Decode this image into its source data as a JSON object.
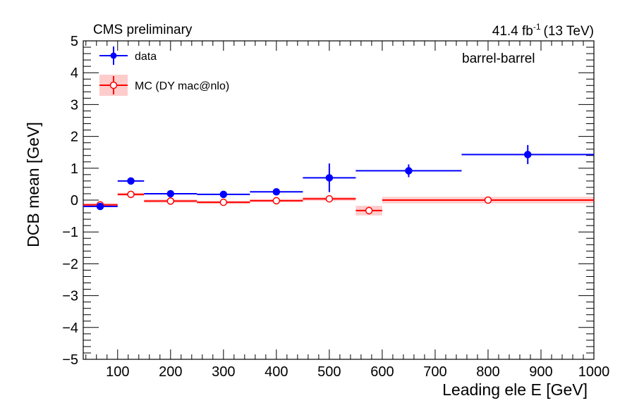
{
  "header": {
    "left": "CMS preliminary",
    "lumi_value": "41.4 fb",
    "lumi_exp": "-1",
    "lumi_energy": "(13 TeV)"
  },
  "category_label": "barrel-barrel",
  "chart_data": {
    "type": "scatter",
    "xlabel": "Leading ele E [GeV]",
    "ylabel": "DCB mean [GeV]",
    "xlim": [
      35,
      1000
    ],
    "ylim": [
      -5,
      5
    ],
    "x_ticks": [
      100,
      200,
      300,
      400,
      500,
      600,
      700,
      800,
      900,
      1000
    ],
    "x_tick_labels": [
      "100",
      "200",
      "300",
      "400",
      "500",
      "600",
      "700",
      "800",
      "900",
      "1000"
    ],
    "y_ticks": [
      -5,
      -4,
      -3,
      -2,
      -1,
      0,
      1,
      2,
      3,
      4,
      5
    ],
    "y_tick_labels": [
      "−5",
      "−4",
      "−3",
      "−2",
      "−1",
      "0",
      "1",
      "2",
      "3",
      "4",
      "5"
    ],
    "legend_position": "top-left",
    "series": [
      {
        "name": "data",
        "color": "#0000ff",
        "marker": "filled-circle",
        "bins": [
          [
            35,
            100
          ],
          [
            100,
            150
          ],
          [
            150,
            250
          ],
          [
            250,
            350
          ],
          [
            350,
            450
          ],
          [
            450,
            550
          ],
          [
            550,
            750
          ],
          [
            750,
            1000
          ]
        ],
        "x": [
          67,
          125,
          200,
          300,
          400,
          500,
          650,
          875
        ],
        "y": [
          -0.2,
          0.6,
          0.2,
          0.18,
          0.26,
          0.7,
          0.92,
          1.43
        ],
        "yerr": [
          0.08,
          0.07,
          0.06,
          0.06,
          0.07,
          0.45,
          0.2,
          0.3
        ]
      },
      {
        "name": "MC (DY mac@nlo)",
        "color": "#ff0000",
        "band_color": "#ffcccc",
        "marker": "open-circle",
        "bins": [
          [
            35,
            100
          ],
          [
            100,
            150
          ],
          [
            150,
            250
          ],
          [
            250,
            350
          ],
          [
            350,
            450
          ],
          [
            450,
            550
          ],
          [
            550,
            600
          ],
          [
            600,
            1000
          ]
        ],
        "x": [
          67,
          125,
          200,
          300,
          400,
          500,
          575,
          800
        ],
        "y": [
          -0.15,
          0.18,
          -0.03,
          -0.07,
          -0.02,
          0.04,
          -0.33,
          0.0
        ],
        "yerr": [
          0.05,
          0.05,
          0.05,
          0.05,
          0.05,
          0.06,
          0.12,
          0.08
        ],
        "band": [
          0.05,
          0.05,
          0.05,
          0.05,
          0.05,
          0.06,
          0.15,
          0.1
        ]
      }
    ]
  }
}
